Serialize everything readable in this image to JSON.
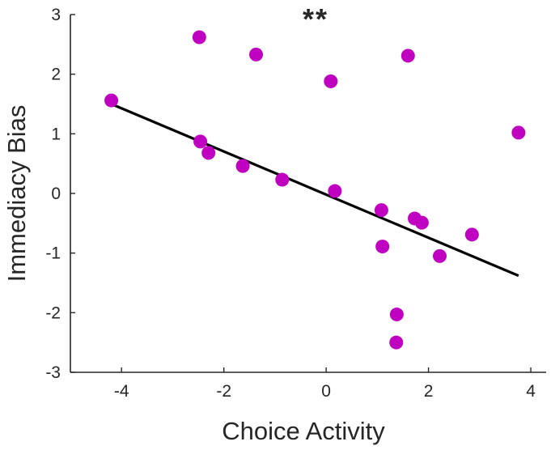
{
  "chart_data": {
    "type": "scatter",
    "title": "",
    "annotation": "**",
    "xlabel": "Choice Activity",
    "ylabel": "Immediacy Bias",
    "xlim": [
      -5,
      4.3
    ],
    "ylim": [
      -3,
      3
    ],
    "xticks": [
      -4,
      -2,
      0,
      2,
      4
    ],
    "yticks": [
      -3,
      -2,
      -1,
      0,
      1,
      2,
      3
    ],
    "xtick_labels": [
      "-4",
      "-2",
      "0",
      "2",
      "4"
    ],
    "ytick_labels": [
      "-3",
      "-2",
      "-1",
      "0",
      "1",
      "2",
      "3"
    ],
    "grid": false,
    "box": false,
    "marker_color": "#c000c0",
    "line_color": "#000000",
    "points": [
      {
        "x": -4.2,
        "y": 1.56
      },
      {
        "x": -2.48,
        "y": 2.62
      },
      {
        "x": -1.37,
        "y": 2.33
      },
      {
        "x": 0.09,
        "y": 1.88
      },
      {
        "x": 1.6,
        "y": 2.31
      },
      {
        "x": 3.76,
        "y": 1.02
      },
      {
        "x": -2.46,
        "y": 0.87
      },
      {
        "x": -2.3,
        "y": 0.68
      },
      {
        "x": -1.63,
        "y": 0.46
      },
      {
        "x": -0.86,
        "y": 0.23
      },
      {
        "x": 0.17,
        "y": 0.04
      },
      {
        "x": 1.08,
        "y": -0.28
      },
      {
        "x": 1.73,
        "y": -0.42
      },
      {
        "x": 1.87,
        "y": -0.49
      },
      {
        "x": 2.85,
        "y": -0.69
      },
      {
        "x": 1.1,
        "y": -0.89
      },
      {
        "x": 2.22,
        "y": -1.05
      },
      {
        "x": 1.38,
        "y": -2.03
      },
      {
        "x": 1.37,
        "y": -2.5
      }
    ],
    "fit_line": {
      "x": [
        -4.2,
        3.76
      ],
      "y": [
        1.5,
        -1.38
      ]
    }
  }
}
